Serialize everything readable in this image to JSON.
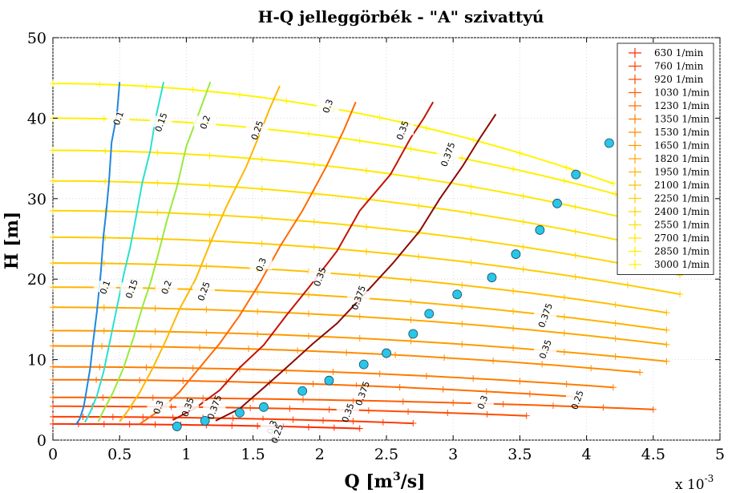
{
  "chart_data": {
    "type": "line",
    "title": "H-Q jelleggörbék - \"A\" szivattyú",
    "xlabel": "Q [m",
    "xlabel_sup": "3",
    "xlabel_tail": "/s]",
    "ylabel": "H [m]",
    "x_exponent_base": "x 10",
    "x_exponent_power": "-3",
    "xlim": [
      0,
      0.005
    ],
    "ylim": [
      0,
      50
    ],
    "xticks": [
      0,
      0.0005,
      0.001,
      0.0015,
      0.002,
      0.0025,
      0.003,
      0.0035,
      0.004,
      0.0045,
      0.005
    ],
    "xtick_labels": [
      "0",
      "0.5",
      "1",
      "1.5",
      "2",
      "2.5",
      "3",
      "3.5",
      "4",
      "4.5",
      "5"
    ],
    "yticks": [
      0,
      10,
      20,
      30,
      40,
      50
    ],
    "ytick_labels": [
      "0",
      "10",
      "20",
      "30",
      "40",
      "50"
    ],
    "grid": true,
    "legend_position": "top-right",
    "series": [
      {
        "name": "630 1/min",
        "color": "#ff2a00",
        "shutoff_head": 2.0,
        "q_max": 0.0023
      },
      {
        "name": "760 1/min",
        "color": "#ff3b00",
        "shutoff_head": 2.9,
        "q_max": 0.0027
      },
      {
        "name": "920 1/min",
        "color": "#ff4d00",
        "shutoff_head": 4.2,
        "q_max": 0.00355
      },
      {
        "name": "1030 1/min",
        "color": "#ff5d00",
        "shutoff_head": 5.3,
        "q_max": 0.0045
      },
      {
        "name": "1230 1/min",
        "color": "#ff6d00",
        "shutoff_head": 7.5,
        "q_max": 0.0039
      },
      {
        "name": "1350 1/min",
        "color": "#ff7c00",
        "shutoff_head": 9.1,
        "q_max": 0.0042
      },
      {
        "name": "1530 1/min",
        "color": "#ff8b00",
        "shutoff_head": 11.7,
        "q_max": 0.0044
      },
      {
        "name": "1650 1/min",
        "color": "#ff9900",
        "shutoff_head": 13.6,
        "q_max": 0.0046
      },
      {
        "name": "1820 1/min",
        "color": "#ffa700",
        "shutoff_head": 16.5,
        "q_max": 0.0046
      },
      {
        "name": "1950 1/min",
        "color": "#ffb300",
        "shutoff_head": 19.0,
        "q_max": 0.0046
      },
      {
        "name": "2100 1/min",
        "color": "#ffbf00",
        "shutoff_head": 22.0,
        "q_max": 0.0046
      },
      {
        "name": "2250 1/min",
        "color": "#ffcb00",
        "shutoff_head": 25.2,
        "q_max": 0.0047
      },
      {
        "name": "2400 1/min",
        "color": "#ffd500",
        "shutoff_head": 28.5,
        "q_max": 0.0047
      },
      {
        "name": "2550 1/min",
        "color": "#ffdf00",
        "shutoff_head": 32.2,
        "q_max": 0.0047
      },
      {
        "name": "2700 1/min",
        "color": "#ffe800",
        "shutoff_head": 36.0,
        "q_max": 0.0047
      },
      {
        "name": "2850 1/min",
        "color": "#fff000",
        "shutoff_head": 40.0,
        "q_max": 0.0046
      },
      {
        "name": "3000 1/min",
        "color": "#fff500",
        "shutoff_head": 44.3,
        "q_max": 0.0042
      }
    ],
    "best_efficiency_points": {
      "color": "#29c6e8",
      "x": [
        0.00093,
        0.00114,
        0.0014,
        0.00158,
        0.00187,
        0.00207,
        0.00233,
        0.0025,
        0.0027,
        0.00282,
        0.00303,
        0.00329,
        0.00347,
        0.00365,
        0.00378,
        0.00392,
        0.00417
      ],
      "y": [
        1.7,
        2.4,
        3.4,
        4.1,
        6.1,
        7.4,
        9.4,
        10.8,
        13.2,
        15.7,
        18.1,
        20.2,
        23.1,
        26.1,
        29.4,
        33.0,
        36.9
      ]
    },
    "efficiency_contours": [
      {
        "label": "0.1",
        "color": "#1f86e0",
        "points": [
          [
            0.00017,
            1.9
          ],
          [
            0.0002,
            2.6
          ],
          [
            0.00023,
            4.1
          ],
          [
            0.00025,
            6.0
          ],
          [
            0.00028,
            9.0
          ],
          [
            0.0003,
            12.0
          ],
          [
            0.00033,
            16.0
          ],
          [
            0.00036,
            21.0
          ],
          [
            0.00038,
            25.5
          ],
          [
            0.0004,
            28.5
          ],
          [
            0.00042,
            32.0
          ],
          [
            0.00044,
            37.0
          ],
          [
            0.00048,
            40.5
          ],
          [
            0.0005,
            44.5
          ]
        ],
        "labels_at": [
          1,
          6
        ]
      },
      {
        "label": "0.15",
        "color": "#29e0d0",
        "points": [
          [
            0.00024,
            2.2
          ],
          [
            0.00028,
            3.5
          ],
          [
            0.00033,
            5.5
          ],
          [
            0.00038,
            8.5
          ],
          [
            0.00043,
            12.5
          ],
          [
            0.00048,
            16.5
          ],
          [
            0.00053,
            20.5
          ],
          [
            0.00058,
            24.0
          ],
          [
            0.00062,
            27.5
          ],
          [
            0.00067,
            32.0
          ],
          [
            0.00073,
            36.0
          ],
          [
            0.00077,
            40.0
          ],
          [
            0.00083,
            44.5
          ]
        ],
        "labels_at": [
          6,
          10
        ]
      },
      {
        "label": "0.2",
        "color": "#98ea3c",
        "points": [
          [
            0.00034,
            2.3
          ],
          [
            0.00038,
            3.7
          ],
          [
            0.00045,
            5.9
          ],
          [
            0.00053,
            9.0
          ],
          [
            0.0006,
            12.5
          ],
          [
            0.00067,
            16.5
          ],
          [
            0.00073,
            19.5
          ],
          [
            0.00078,
            22.5
          ],
          [
            0.00085,
            27.0
          ],
          [
            0.00093,
            31.5
          ],
          [
            0.001,
            36.5
          ],
          [
            0.00108,
            40.0
          ],
          [
            0.00118,
            44.5
          ]
        ],
        "labels_at": [
          5,
          10
        ]
      },
      {
        "label": "0.25",
        "color": "#ffb700",
        "points": [
          [
            0.0005,
            2.3
          ],
          [
            0.00056,
            3.6
          ],
          [
            0.00065,
            5.9
          ],
          [
            0.00075,
            9.0
          ],
          [
            0.00085,
            12.5
          ],
          [
            0.00095,
            16.3
          ],
          [
            0.00107,
            20.0
          ],
          [
            0.00118,
            24.5
          ],
          [
            0.0013,
            29.0
          ],
          [
            0.00145,
            34.0
          ],
          [
            0.00155,
            38.0
          ],
          [
            0.00162,
            41.0
          ],
          [
            0.0017,
            44.0
          ]
        ],
        "labels_at": [
          5,
          10
        ]
      },
      {
        "label": "0.3",
        "color": "#ff6a00",
        "points": [
          [
            0.00065,
            2.0
          ],
          [
            0.0008,
            3.7
          ],
          [
            0.00095,
            6.0
          ],
          [
            0.0011,
            9.0
          ],
          [
            0.00125,
            12.0
          ],
          [
            0.0014,
            15.5
          ],
          [
            0.00155,
            19.5
          ],
          [
            0.0017,
            24.0
          ],
          [
            0.00187,
            28.5
          ],
          [
            0.00205,
            34.0
          ],
          [
            0.00218,
            38.5
          ],
          [
            0.00227,
            42.0
          ]
        ],
        "labels_at": [
          6,
          11
        ]
      },
      {
        "label": "0.35",
        "color": "#c41200",
        "points": [
          [
            0.0009,
            2.5
          ],
          [
            0.00107,
            4.0
          ],
          [
            0.00125,
            6.2
          ],
          [
            0.0014,
            9.0
          ],
          [
            0.00158,
            11.8
          ],
          [
            0.00175,
            15.5
          ],
          [
            0.00192,
            19.0
          ],
          [
            0.00213,
            23.5
          ],
          [
            0.0023,
            28.5
          ],
          [
            0.00253,
            33.0
          ],
          [
            0.00268,
            37.5
          ],
          [
            0.00278,
            40.0
          ],
          [
            0.00285,
            42.0
          ]
        ],
        "labels_at": [
          6,
          11
        ]
      },
      {
        "label": "0.375",
        "color": "#8a0a00",
        "points": [
          [
            0.00122,
            2.4
          ],
          [
            0.0014,
            3.9
          ],
          [
            0.00158,
            6.5
          ],
          [
            0.00175,
            9.0
          ],
          [
            0.00195,
            12.0
          ],
          [
            0.00213,
            14.5
          ],
          [
            0.0023,
            17.5
          ],
          [
            0.00255,
            22.0
          ],
          [
            0.00275,
            26.0
          ],
          [
            0.0029,
            30.0
          ],
          [
            0.00307,
            34.0
          ],
          [
            0.0032,
            37.5
          ],
          [
            0.00332,
            40.5
          ]
        ],
        "labels_at": [
          7,
          11
        ]
      }
    ],
    "contour_labels": [
      {
        "text": "0.1",
        "q": 0.00049,
        "h": 40.0
      },
      {
        "text": "0.15",
        "q": 0.00081,
        "h": 39.5
      },
      {
        "text": "0.2",
        "q": 0.00114,
        "h": 39.5
      },
      {
        "text": "0.25",
        "q": 0.00153,
        "h": 38.5
      },
      {
        "text": "0.3",
        "q": 0.00206,
        "h": 41.5
      },
      {
        "text": "0.35",
        "q": 0.00262,
        "h": 38.5
      },
      {
        "text": "0.375",
        "q": 0.00296,
        "h": 35.5
      },
      {
        "text": "0.1",
        "q": 0.00039,
        "h": 19.0
      },
      {
        "text": "0.15",
        "q": 0.00059,
        "h": 18.8
      },
      {
        "text": "0.2",
        "q": 0.00085,
        "h": 19.0
      },
      {
        "text": "0.25",
        "q": 0.00113,
        "h": 18.5
      },
      {
        "text": "0.3",
        "q": 0.00156,
        "h": 21.8
      },
      {
        "text": "0.35",
        "q": 0.002,
        "h": 20.3
      },
      {
        "text": "0.375",
        "q": 0.00229,
        "h": 17.7
      },
      {
        "text": "0.3",
        "q": 0.00079,
        "h": 4.1
      },
      {
        "text": "0.35",
        "q": 0.00101,
        "h": 4.1
      },
      {
        "text": "0.375",
        "q": 0.00121,
        "h": 4.1
      },
      {
        "text": "0.35",
        "q": 0.00221,
        "h": 3.4
      },
      {
        "text": "0.375",
        "q": 0.00232,
        "h": 5.8
      },
      {
        "text": "0.3",
        "q": 0.00322,
        "h": 4.7
      },
      {
        "text": "0.25",
        "q": 0.00393,
        "h": 5.0
      },
      {
        "text": "0.35",
        "q": 0.00369,
        "h": 11.3
      },
      {
        "text": "0.375",
        "q": 0.00369,
        "h": 15.5
      },
      {
        "text": "0.3",
        "q": 0.00164,
        "h": 1.6
      },
      {
        "text": "0.25",
        "q": 0.00168,
        "h": 0.8
      }
    ]
  }
}
